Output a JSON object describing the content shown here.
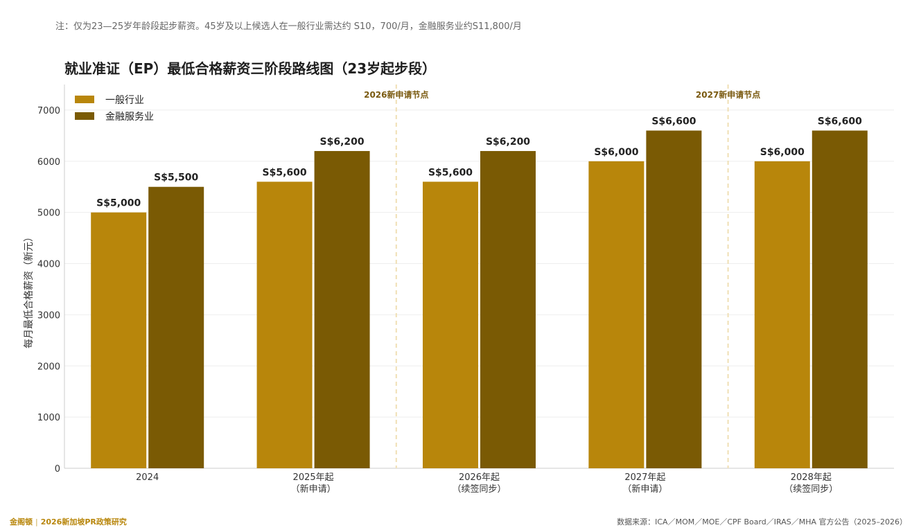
{
  "note": "注：仅为23—25岁年龄段起步薪资。45岁及以上候选人在一般行业需达约 S10，700/月，金融服务业约S11,800/月",
  "footer": {
    "brand": "金阁顿",
    "series": "2026新加坡PR政策研究",
    "source": "数据来源：ICA／MOM／MOE／CPF Board／IRAS／MHA 官方公告（2025–2026）"
  },
  "colors": {
    "general": "#b8860b",
    "finance": "#7a5a04",
    "marker_line": "#f0dfb4",
    "marker_text": "#7a5a10",
    "grid": "#eeeeee"
  },
  "chart_data": {
    "type": "bar",
    "title": "就业准证（EP）最低合格薪资三阶段路线图（23岁起步段）",
    "ylabel": "每月最低合格薪资（新元）",
    "xlabel": "",
    "ylim": [
      0,
      7500
    ],
    "yticks": [
      0,
      1000,
      2000,
      3000,
      4000,
      5000,
      6000,
      7000
    ],
    "grid": true,
    "legend_position": "top-left",
    "categories": [
      [
        "2024"
      ],
      [
        "2025年起",
        "（新申请）"
      ],
      [
        "2026年起",
        "（续签同步）"
      ],
      [
        "2027年起",
        "（新申请）"
      ],
      [
        "2028年起",
        "（续签同步）"
      ]
    ],
    "series": [
      {
        "name": "一般行业",
        "values": [
          5000,
          5600,
          5600,
          6000,
          6000
        ],
        "labels": [
          "S$5,000",
          "S$5,600",
          "S$5,600",
          "S$6,000",
          "S$6,000"
        ]
      },
      {
        "name": "金融服务业",
        "values": [
          5500,
          6200,
          6200,
          6600,
          6600
        ],
        "labels": [
          "S$5,500",
          "S$6,200",
          "S$6,200",
          "S$6,600",
          "S$6,600"
        ]
      }
    ],
    "annotations": [
      {
        "text": "2026新申请节点",
        "between": [
          1,
          2
        ]
      },
      {
        "text": "2027新申请节点",
        "between": [
          3,
          4
        ]
      }
    ]
  }
}
